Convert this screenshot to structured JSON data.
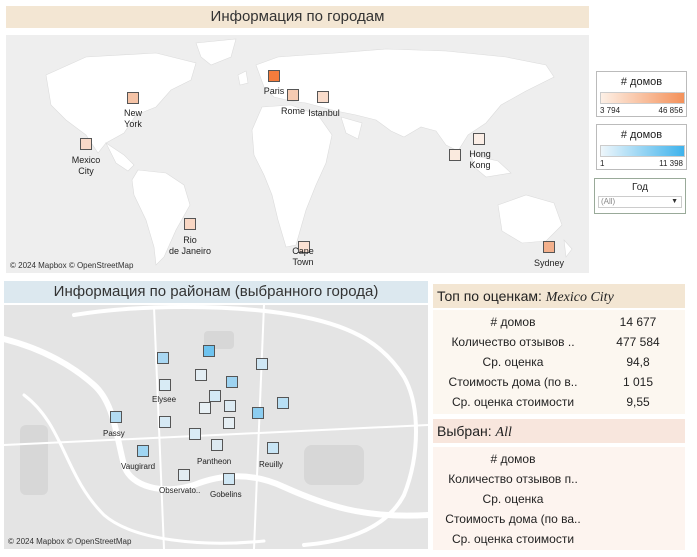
{
  "world": {
    "title": "Информация по городам",
    "credit": "© 2024 Mapbox  © OpenStreetMap",
    "cities": [
      {
        "name": "New\nYork",
        "color": "#f5c3a6"
      },
      {
        "name": "Paris",
        "color": "#f47c3c"
      },
      {
        "name": "Rome",
        "color": "#f6cbb2"
      },
      {
        "name": "Istanbul",
        "color": "#f9dccb"
      },
      {
        "name": "Mexico\nCity",
        "color": "#f8d9c8"
      },
      {
        "name": "Hong\nKong",
        "color": "#fbeee6"
      },
      {
        "name": "Rio\nde Janeiro",
        "color": "#f8d6c3"
      },
      {
        "name": "Cape\nTown",
        "color": "#fae1d3"
      },
      {
        "name": "Sydney",
        "color": "#f3b08c"
      },
      {
        "name": "",
        "color": "#faeade"
      }
    ]
  },
  "legend_homes_orange": {
    "title": "# домов",
    "min": "3 794",
    "max": "46 856",
    "color_from": "#fdf0e6",
    "color_to": "#f4915a"
  },
  "legend_homes_blue": {
    "title": "# домов",
    "min": "1",
    "max": "11 398",
    "color_from": "#eef6fb",
    "color_to": "#3fb3ec"
  },
  "year_filter": {
    "title": "Год",
    "selected": "(All)"
  },
  "district": {
    "title": "Информация по районам (выбранного города)",
    "credit": "© 2024 Mapbox  © OpenStreetMap",
    "markers": [
      {
        "color": "#a9d7f2"
      },
      {
        "color": "#6ec3ef"
      },
      {
        "color": "#cfe7f5"
      },
      {
        "color": "#e4eef4"
      },
      {
        "color": "#d8ebf5"
      },
      {
        "color": "#9dd3f1"
      },
      {
        "color": "#d3e9f5"
      },
      {
        "color": "#e8f0f4"
      },
      {
        "color": "#dceaf2"
      },
      {
        "color": "#8ccdf0"
      },
      {
        "color": "#b8dff4"
      },
      {
        "color": "#d6e9f4"
      },
      {
        "color": "#b3dcf3"
      },
      {
        "color": "#d9ebf5"
      },
      {
        "color": "#e6eff4"
      },
      {
        "color": "#9fd5f2"
      },
      {
        "color": "#dce9f1"
      },
      {
        "color": "#c8e5f5"
      },
      {
        "color": "#e2edf3"
      },
      {
        "color": "#d0e7f4"
      }
    ],
    "labels": [
      "Elysee",
      "Passy",
      "Vaugirard",
      "Pantheon",
      "Reuilly",
      "Observato..",
      "Gobelins"
    ]
  },
  "top_panel": {
    "prefix": "Топ по оценкам: ",
    "city": "Mexico City",
    "rows": [
      {
        "label": "# домов",
        "value": "14 677"
      },
      {
        "label": "Количество отзывов ..",
        "value": "477 584"
      },
      {
        "label": "Ср. оценка",
        "value": "94,8"
      },
      {
        "label": "Стоимость дома (по в..",
        "value": "1 015"
      },
      {
        "label": "Ср. оценка стоимости",
        "value": "9,55"
      }
    ]
  },
  "selected_panel": {
    "prefix": "Выбран: ",
    "value": "All",
    "rows": [
      {
        "label": "# домов",
        "value": ""
      },
      {
        "label": "Количество отзывов п..",
        "value": ""
      },
      {
        "label": "Ср. оценка",
        "value": ""
      },
      {
        "label": "Стоимость дома (по ва..",
        "value": ""
      },
      {
        "label": "Ср. оценка стоимости",
        "value": ""
      }
    ]
  }
}
